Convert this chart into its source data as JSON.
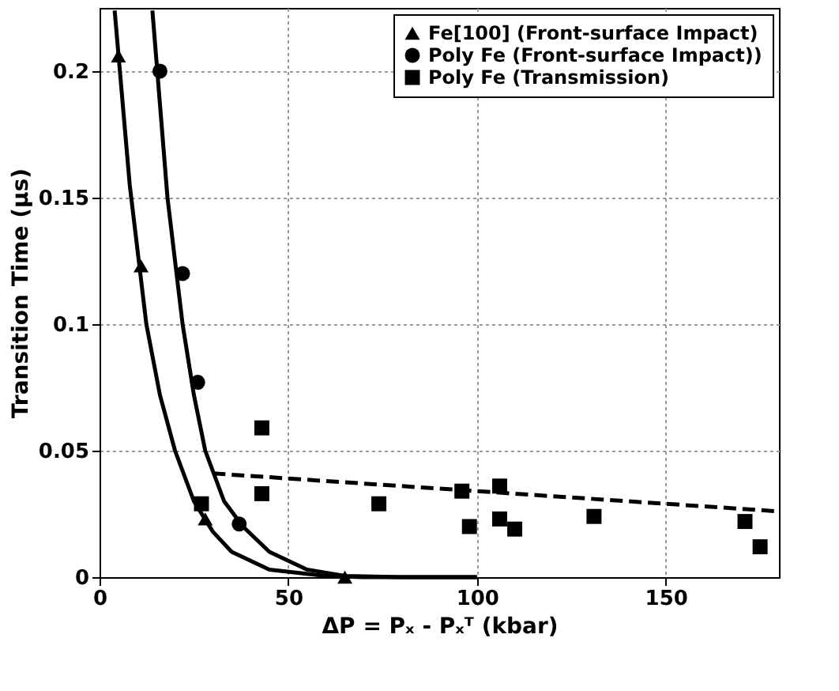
{
  "chart_data": {
    "type": "scatter",
    "xlabel": "ΔP = Pₓ - Pₓᵀ (kbar)",
    "ylabel": "Transition Time (µs)",
    "xlim": [
      0,
      180
    ],
    "ylim": [
      0,
      0.225
    ],
    "xticks": [
      0,
      50,
      100,
      150
    ],
    "yticks": [
      0,
      0.05,
      0.1,
      0.15,
      0.2
    ],
    "grid": true,
    "legend": "top right",
    "series": [
      {
        "name": "Fe[100] (Front-surface Impact)",
        "marker": "triangle",
        "color": "#000000",
        "x": [
          5,
          11,
          28,
          65
        ],
        "values": [
          0.206,
          0.123,
          0.023,
          0
        ]
      },
      {
        "name": "Poly Fe (Front-surface Impact))",
        "marker": "circle",
        "color": "#000000",
        "x": [
          16,
          22,
          26,
          37
        ],
        "values": [
          0.2,
          0.12,
          0.077,
          0.021
        ]
      },
      {
        "name": "Poly Fe (Transmission)",
        "marker": "square",
        "color": "#000000",
        "x": [
          27,
          43,
          43,
          74,
          96,
          98,
          106,
          106,
          110,
          131,
          171,
          175
        ],
        "values": [
          0.029,
          0.059,
          0.033,
          0.029,
          0.034,
          0.02,
          0.036,
          0.023,
          0.019,
          0.024,
          0.022,
          0.012
        ]
      },
      {
        "type": "line",
        "line_style": "solid",
        "color": "#000000",
        "x": [
          4,
          8,
          12.4,
          16,
          20,
          25,
          30,
          35,
          45,
          60,
          70,
          100
        ],
        "values": [
          0.224,
          0.155,
          0.1,
          0.072,
          0.05,
          0.03,
          0.018,
          0.01,
          0.003,
          0.0005,
          0,
          0
        ]
      },
      {
        "type": "line",
        "line_style": "solid",
        "color": "#000000",
        "x": [
          14,
          18,
          22,
          25,
          28,
          33,
          38,
          45,
          55,
          65,
          80,
          100
        ],
        "values": [
          0.224,
          0.15,
          0.1,
          0.072,
          0.05,
          0.03,
          0.02,
          0.01,
          0.003,
          0.0005,
          0,
          0
        ]
      },
      {
        "type": "line",
        "line_style": "dashed",
        "color": "#000000",
        "x": [
          30,
          180
        ],
        "values": [
          0.041,
          0.026
        ]
      }
    ]
  }
}
